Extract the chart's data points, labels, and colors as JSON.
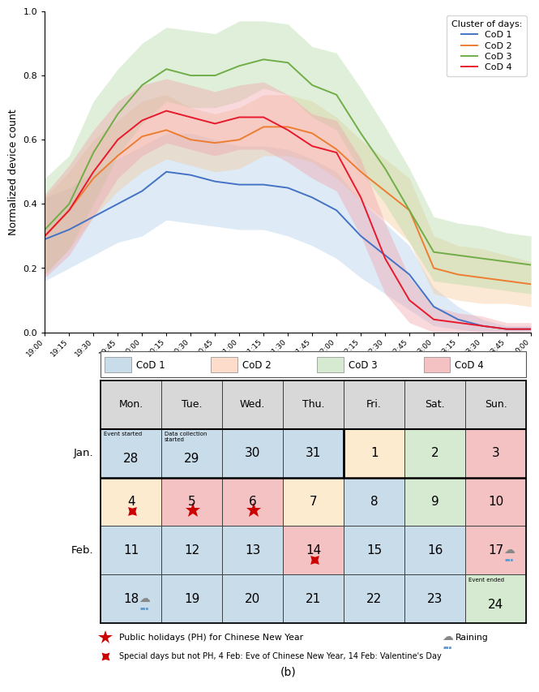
{
  "time_labels": [
    "19:00",
    "19:15",
    "19:30",
    "19:45",
    "20:00",
    "20:15",
    "20:30",
    "20:45",
    "21:00",
    "21:15",
    "21:30",
    "21:45",
    "22:00",
    "22:15",
    "22:30",
    "22:45",
    "23:00",
    "23:15",
    "23:30",
    "23:45",
    "0:00"
  ],
  "cod1_mean": [
    0.29,
    0.32,
    0.36,
    0.4,
    0.44,
    0.5,
    0.49,
    0.47,
    0.46,
    0.46,
    0.45,
    0.42,
    0.38,
    0.3,
    0.24,
    0.18,
    0.08,
    0.04,
    0.02,
    0.01,
    0.01
  ],
  "cod1_lower": [
    0.16,
    0.2,
    0.24,
    0.28,
    0.3,
    0.35,
    0.34,
    0.33,
    0.32,
    0.32,
    0.3,
    0.27,
    0.23,
    0.17,
    0.12,
    0.07,
    0.02,
    0.01,
    0.0,
    0.0,
    0.0
  ],
  "cod1_upper": [
    0.42,
    0.45,
    0.5,
    0.54,
    0.58,
    0.62,
    0.62,
    0.6,
    0.58,
    0.58,
    0.57,
    0.54,
    0.5,
    0.41,
    0.34,
    0.27,
    0.14,
    0.08,
    0.04,
    0.02,
    0.02
  ],
  "cod2_mean": [
    0.3,
    0.38,
    0.48,
    0.55,
    0.61,
    0.63,
    0.6,
    0.59,
    0.6,
    0.64,
    0.64,
    0.62,
    0.57,
    0.5,
    0.44,
    0.38,
    0.2,
    0.18,
    0.17,
    0.16,
    0.15
  ],
  "cod2_lower": [
    0.18,
    0.26,
    0.36,
    0.44,
    0.5,
    0.54,
    0.52,
    0.5,
    0.51,
    0.55,
    0.55,
    0.53,
    0.48,
    0.41,
    0.35,
    0.28,
    0.12,
    0.1,
    0.09,
    0.09,
    0.08
  ],
  "cod2_upper": [
    0.42,
    0.5,
    0.6,
    0.66,
    0.72,
    0.74,
    0.7,
    0.68,
    0.7,
    0.74,
    0.74,
    0.72,
    0.67,
    0.6,
    0.54,
    0.48,
    0.3,
    0.27,
    0.26,
    0.24,
    0.22
  ],
  "cod3_mean": [
    0.32,
    0.4,
    0.56,
    0.68,
    0.77,
    0.82,
    0.8,
    0.8,
    0.83,
    0.85,
    0.84,
    0.77,
    0.74,
    0.62,
    0.51,
    0.38,
    0.25,
    0.24,
    0.23,
    0.22,
    0.21
  ],
  "cod3_lower": [
    0.18,
    0.26,
    0.4,
    0.55,
    0.65,
    0.72,
    0.7,
    0.7,
    0.72,
    0.76,
    0.74,
    0.67,
    0.63,
    0.5,
    0.4,
    0.28,
    0.16,
    0.15,
    0.14,
    0.13,
    0.12
  ],
  "cod3_upper": [
    0.48,
    0.55,
    0.72,
    0.82,
    0.9,
    0.95,
    0.94,
    0.93,
    0.97,
    0.97,
    0.96,
    0.89,
    0.87,
    0.76,
    0.64,
    0.51,
    0.36,
    0.34,
    0.33,
    0.31,
    0.3
  ],
  "cod4_mean": [
    0.3,
    0.38,
    0.5,
    0.6,
    0.66,
    0.69,
    0.67,
    0.65,
    0.67,
    0.67,
    0.63,
    0.58,
    0.56,
    0.42,
    0.23,
    0.1,
    0.04,
    0.03,
    0.02,
    0.01,
    0.01
  ],
  "cod4_lower": [
    0.17,
    0.24,
    0.36,
    0.48,
    0.55,
    0.59,
    0.57,
    0.55,
    0.57,
    0.57,
    0.53,
    0.48,
    0.44,
    0.3,
    0.12,
    0.03,
    0.0,
    0.0,
    0.0,
    0.0,
    0.0
  ],
  "cod4_upper": [
    0.43,
    0.52,
    0.63,
    0.72,
    0.77,
    0.79,
    0.77,
    0.75,
    0.77,
    0.78,
    0.74,
    0.68,
    0.66,
    0.54,
    0.34,
    0.17,
    0.08,
    0.06,
    0.05,
    0.03,
    0.03
  ],
  "cod1_color": "#4472C4",
  "cod2_color": "#ED7D31",
  "cod3_color": "#70AD47",
  "cod4_color": "#E8192C",
  "cod1_fill": "#AECCE8",
  "cod2_fill": "#F5C89A",
  "cod3_fill": "#B2D9A0",
  "cod4_fill": "#F0A0A8",
  "c1": "#C9DCEA",
  "c2": "#FDDCCC",
  "c3": "#D5EAD0",
  "c4": "#F4C2C2",
  "c_hdr": "#D8D8D8",
  "c_orange_light": "#FDEBD0"
}
